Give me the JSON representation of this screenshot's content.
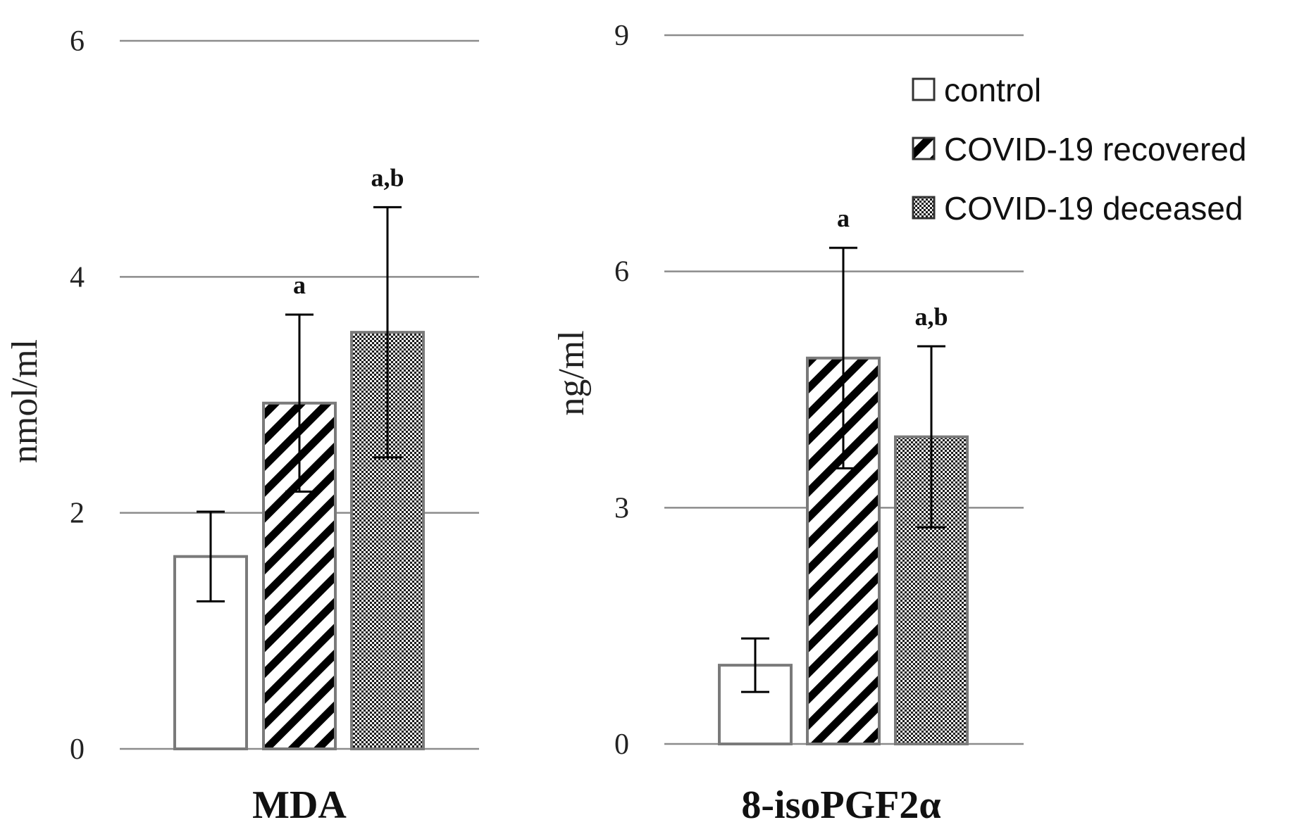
{
  "chart_data": [
    {
      "type": "bar",
      "title": "",
      "xlabel": "MDA",
      "ylabel": "nmol/ml",
      "ylim": [
        0,
        6
      ],
      "yticks": [
        "0",
        "2",
        "4",
        "6"
      ],
      "categories": [
        "MDA"
      ],
      "series": [
        {
          "name": "control",
          "values": [
            1.63
          ],
          "error": [
            0.38
          ],
          "annotation": ""
        },
        {
          "name": "COVID-19 recovered",
          "values": [
            2.93
          ],
          "error": [
            0.75
          ],
          "annotation": "a"
        },
        {
          "name": "COVID-19 deceased",
          "values": [
            3.53
          ],
          "error": [
            1.06
          ],
          "annotation": "a,b"
        }
      ]
    },
    {
      "type": "bar",
      "title": "",
      "xlabel": "8-isoPGF2α",
      "ylabel": "ng/ml",
      "ylim": [
        0,
        9
      ],
      "yticks": [
        "0",
        "3",
        "6",
        "9"
      ],
      "categories": [
        "8-isoPGF2α"
      ],
      "series": [
        {
          "name": "control",
          "values": [
            1.0
          ],
          "error": [
            0.34
          ],
          "annotation": ""
        },
        {
          "name": "COVID-19 recovered",
          "values": [
            4.9
          ],
          "error": [
            1.4
          ],
          "annotation": "a"
        },
        {
          "name": "COVID-19 deceased",
          "values": [
            3.9
          ],
          "error": [
            1.15
          ],
          "annotation": "a,b"
        }
      ]
    }
  ],
  "legend": {
    "position": "top-right",
    "items": [
      "control",
      "COVID-19 recovered",
      "COVID-19 deceased"
    ]
  },
  "colors": {
    "grid": "#8c8c8c",
    "bar_border": "#7a7a7a",
    "control_fill": "#ffffff",
    "hatch": "#000000",
    "dots": "#1a1a1a"
  }
}
